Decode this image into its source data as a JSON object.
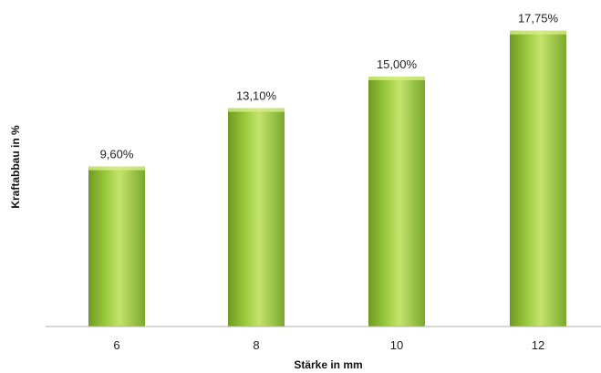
{
  "chart_data": {
    "type": "bar",
    "categories": [
      "6",
      "8",
      "10",
      "12"
    ],
    "values": [
      9.6,
      13.1,
      15.0,
      17.75
    ],
    "data_labels": [
      "9,60%",
      "13,10%",
      "15,00%",
      "17,75%"
    ],
    "title": "",
    "xlabel": "Stärke in mm",
    "ylabel": "Kraftabbau in %",
    "ylim": [
      0,
      18.5
    ],
    "grid": false,
    "legend": "none",
    "colors": {
      "bar_light": "#c4e46c",
      "bar_mid": "#99c93d",
      "bar_dark": "#6f9a22",
      "axis": "#b0b0b0"
    }
  }
}
